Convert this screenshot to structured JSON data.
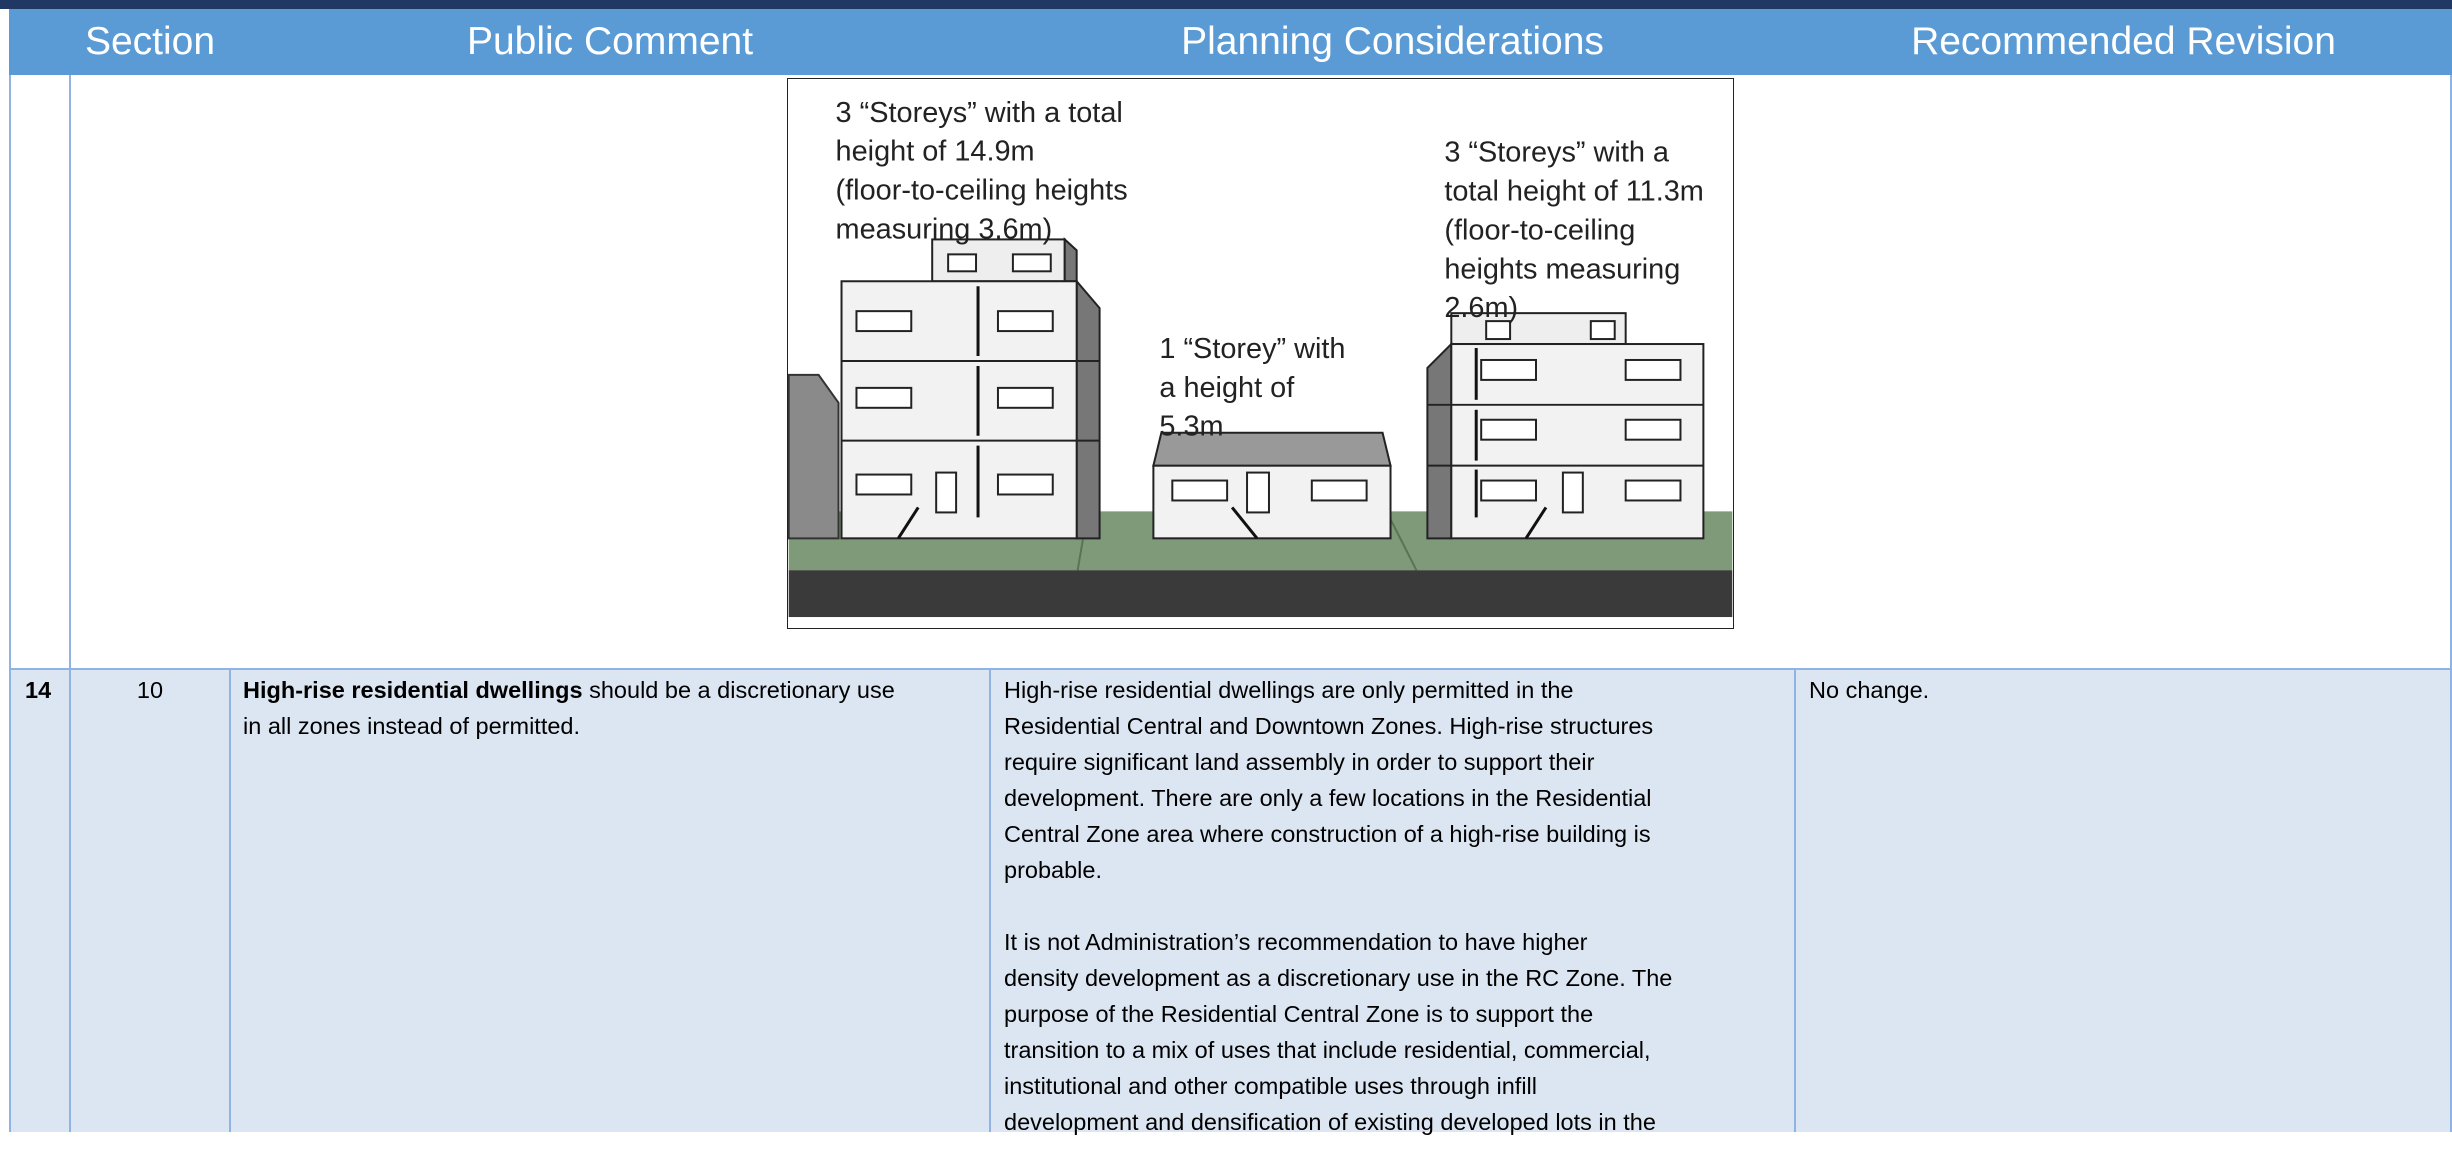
{
  "header": {
    "columns": [
      "Section",
      "Public Comment",
      "Planning Considerations",
      "Recommended Revision"
    ]
  },
  "illustration": {
    "captions": [
      {
        "lines": [
          "3 “Storeys” with a total",
          "height of 14.9m",
          "(floor-to-ceiling heights",
          "measuring 3.6m)"
        ]
      },
      {
        "lines": [
          "1 “Storey” with",
          "a height of",
          "5.3m"
        ]
      },
      {
        "lines": [
          "3 “Storeys” with a",
          "total height of 11.3m",
          "(floor-to-ceiling",
          "heights measuring",
          "2.6m)"
        ]
      }
    ]
  },
  "table": {
    "rows": [
      {
        "number": "14",
        "section": "10",
        "comment": {
          "bold": "High-rise residential dwellings",
          "lines": [
            "should be a discretionary use",
            "in all zones instead of permitted."
          ]
        },
        "considerations": [
          [
            "High-rise residential dwellings are only permitted in the",
            "Residential Central and Downtown Zones.  High-rise structures",
            "require significant land assembly in order to support their",
            "development.  There are only a few locations in the Residential",
            "Central Zone area where construction of a high-rise building is",
            "probable."
          ],
          [
            "It is not Administration’s recommendation to have higher",
            "density development as a discretionary use in the RC Zone.  The",
            "purpose of the Residential Central Zone is to support the",
            "transition to a mix of uses that include residential, commercial,",
            "institutional and other compatible uses through infill",
            "development and densification of existing developed lots in the"
          ]
        ],
        "revision": "No change."
      }
    ]
  }
}
